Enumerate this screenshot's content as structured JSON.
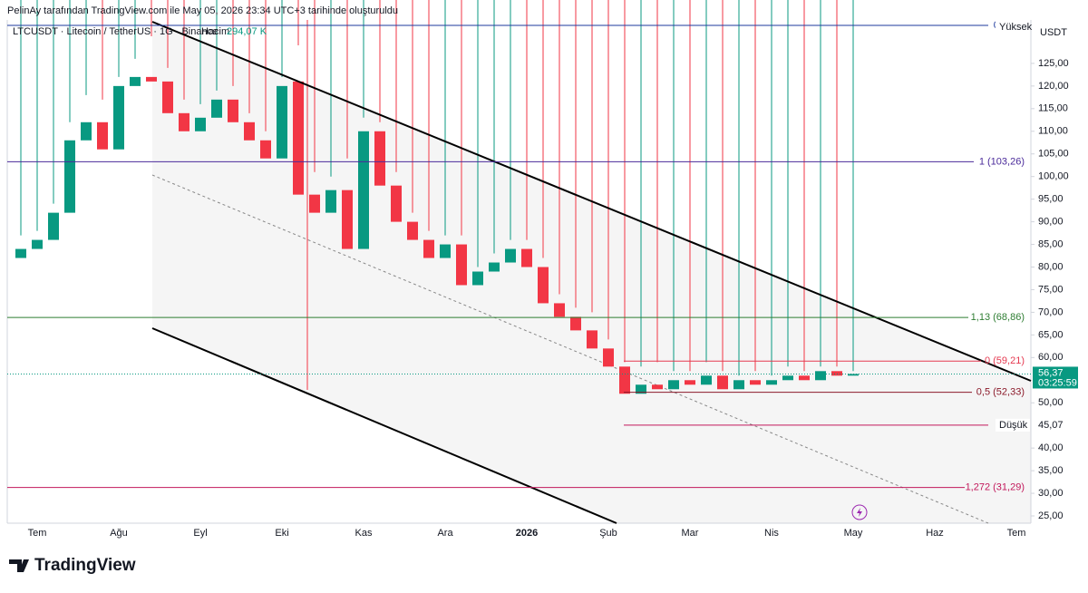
{
  "chart_data": {
    "type": "candlestick",
    "title": "PelinAy tarafından TradingView.com ile May 05, 2026 23:34 UTC+3 tarihinde oluşturuldu",
    "symbol": "LTCUSDT · Litecoin / TetherUS · 1G · Binance",
    "volume_name": "Hacim",
    "volume": "294,07 K",
    "currency": "USDT",
    "brand": "TradingView",
    "up_color": "#089981",
    "down_color": "#f23645",
    "categories": [
      null,
      "Tem",
      null,
      null,
      null,
      null,
      "Ağu",
      null,
      null,
      null,
      null,
      "Eyl",
      null,
      null,
      null,
      null,
      "Eki",
      null,
      null,
      null,
      null,
      "Kas",
      null,
      null,
      null,
      null,
      "Ara",
      null,
      null,
      null,
      null,
      "2026",
      null,
      null,
      null,
      null,
      "Şub",
      null,
      null,
      null,
      null,
      "Mar",
      null,
      null,
      null,
      null,
      "Nis",
      null,
      null,
      null,
      null,
      "May",
      null,
      null,
      null,
      null,
      "Haz",
      null,
      null,
      null,
      null,
      "Tem"
    ],
    "open": [
      82,
      84,
      86,
      92,
      108,
      112,
      106,
      120,
      122,
      121,
      114,
      110,
      113,
      117,
      112,
      108,
      104,
      121,
      96,
      92,
      97,
      84,
      110,
      98,
      90,
      86,
      82,
      85,
      76,
      79,
      81,
      84,
      80,
      72,
      69,
      66,
      62,
      58,
      52,
      54,
      53,
      55,
      54,
      56,
      53,
      55,
      54,
      55,
      56,
      55,
      57,
      56,
      null,
      null,
      null,
      null,
      null,
      null,
      null,
      null,
      null,
      null
    ],
    "high": [
      87,
      88,
      94,
      112,
      118,
      117,
      122,
      126,
      131,
      124,
      117,
      116,
      119,
      120,
      114,
      110,
      122,
      129,
      101,
      100,
      104,
      113,
      112,
      101,
      92,
      88,
      87,
      87,
      80,
      83,
      86,
      86,
      82,
      74,
      71,
      70,
      64,
      59,
      58,
      59,
      57,
      57,
      59,
      57,
      56,
      57,
      56,
      58,
      57,
      58,
      58,
      57,
      null,
      null,
      null,
      null,
      null,
      null,
      null,
      null,
      null,
      null
    ],
    "low": {
      "value": 45.07,
      "label": "45,07"
    },
    "close": [
      84,
      86,
      92,
      108,
      112,
      106,
      120,
      122,
      121,
      114,
      110,
      113,
      117,
      112,
      108,
      104,
      120,
      96,
      92,
      97,
      84,
      110,
      98,
      90,
      86,
      82,
      85,
      76,
      79,
      81,
      84,
      80,
      72,
      69,
      66,
      62,
      58,
      52,
      54,
      53,
      55,
      54,
      56,
      53,
      55,
      54,
      55,
      56,
      55,
      57,
      56,
      56.37,
      null,
      null,
      null,
      null,
      null,
      null,
      null,
      null,
      null,
      null
    ],
    "ylim": [
      23.4,
      134.6
    ],
    "yticks": [
      {
        "value": 125,
        "label": "125,00"
      },
      {
        "value": 120,
        "label": "120,00"
      },
      {
        "value": 115,
        "label": "115,00"
      },
      {
        "value": 110,
        "label": "110,00"
      },
      {
        "value": 105,
        "label": "105,00"
      },
      {
        "value": 100,
        "label": "100,00"
      },
      {
        "value": 95,
        "label": "95,00"
      },
      {
        "value": 90,
        "label": "90,00"
      },
      {
        "value": 85,
        "label": "85,00"
      },
      {
        "value": 80,
        "label": "80,00"
      },
      {
        "value": 75,
        "label": "75,00"
      },
      {
        "value": 70,
        "label": "70,00"
      },
      {
        "value": 65,
        "label": "65,00"
      },
      {
        "value": 60,
        "label": "60,00"
      },
      {
        "value": 50,
        "label": "50,00"
      },
      {
        "value": 40,
        "label": "40,00"
      },
      {
        "value": 35,
        "label": "35,00"
      },
      {
        "value": 30,
        "label": "30,00"
      },
      {
        "value": 25,
        "label": "25,00"
      }
    ],
    "levels": [
      {
        "value": 133.4,
        "label": "0,886 (",
        "color": "#1e3a9e"
      },
      {
        "value": 103.26,
        "label": "1 (103,26)",
        "color": "#4a2a9a"
      },
      {
        "value": 68.86,
        "label": "1,13 (68,86)",
        "color": "#2e7d32"
      },
      {
        "value": 59.21,
        "label": "0 (59,21)",
        "color": "#e53950"
      },
      {
        "value": 52.33,
        "label": "0,5 (52,33)",
        "color": "#8b1a2a"
      },
      {
        "value": 45.07,
        "label": "1 (",
        "color": "#c2185b"
      },
      {
        "value": 31.29,
        "label": "1,272 (31,29)",
        "color": "#c2185b"
      }
    ],
    "last": {
      "value": 56.37,
      "label": "56,37"
    },
    "countdown": "03:25:59",
    "high_marker": "Yüksek",
    "low_marker": "Düşük"
  }
}
